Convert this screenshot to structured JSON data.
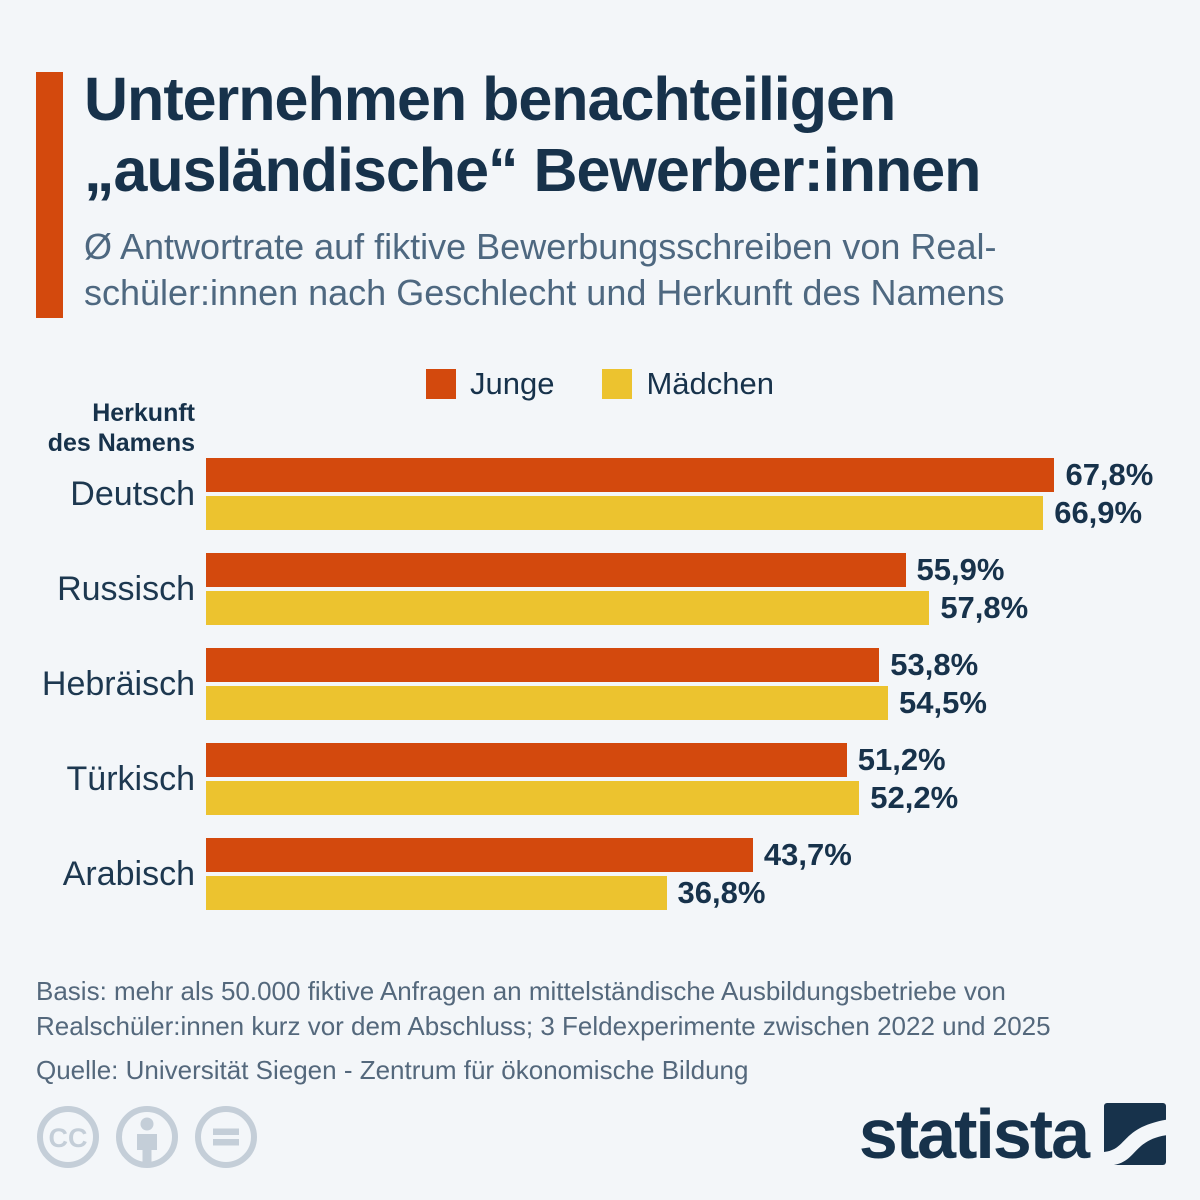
{
  "header": {
    "title_line1": "Unternehmen benachteiligen",
    "title_line2": "„ausländische“ Bewerber:innen",
    "subtitle_line1": "Ø Antwortrate auf fiktive Bewerbungsschreiben von Real-",
    "subtitle_line2": "schüler:innen nach Geschlecht und Herkunft des Namens"
  },
  "chart_data": {
    "type": "bar",
    "orientation": "horizontal",
    "title": "Unternehmen benachteiligen „ausländische“ Bewerber:innen",
    "subtitle": "Ø Antwortrate auf fiktive Bewerbungsschreiben von Realschüler:innen nach Geschlecht und Herkunft des Namens",
    "categories": [
      "Deutsch",
      "Russisch",
      "Hebräisch",
      "Türkisch",
      "Arabisch"
    ],
    "category_axis_label": "Herkunft des Namens",
    "series": [
      {
        "name": "Junge",
        "color": "#d3490d",
        "values": [
          67.8,
          55.9,
          53.8,
          51.2,
          43.7
        ],
        "labels": [
          "67,8%",
          "55,9%",
          "53,8%",
          "51,2%",
          "43,7%"
        ]
      },
      {
        "name": "Mädchen",
        "color": "#ecc32f",
        "values": [
          66.9,
          57.8,
          54.5,
          52.2,
          36.8
        ],
        "labels": [
          "66,9%",
          "57,8%",
          "54,5%",
          "52,2%",
          "36,8%"
        ]
      }
    ],
    "xlim": [
      0,
      70
    ],
    "grid": false,
    "legend_position": "top-center",
    "value_suffix": "%"
  },
  "legend": {
    "items": [
      {
        "label": "Junge",
        "color": "#d3490d"
      },
      {
        "label": "Mädchen",
        "color": "#ecc32f"
      }
    ]
  },
  "axis": {
    "label_line1": "Herkunft",
    "label_line2": "des Namens"
  },
  "footer": {
    "basis_line1": "Basis: mehr als 50.000 fiktive Anfragen an mittelständische Ausbildungsbetriebe von",
    "basis_line2": "Realschüler:innen kurz vor dem Abschluss; 3 Feldexperimente zwischen 2022 und 2025",
    "source": "Quelle: Universität Siegen - Zentrum für ökonomische Bildung"
  },
  "branding": {
    "logo_text": "statista",
    "cc_label": "CC"
  },
  "colors": {
    "background": "#f3f6f9",
    "accent_orange": "#d3490d",
    "series_yellow": "#ecc32f",
    "navy": "#17324b",
    "text_gray_blue": "#4e6880",
    "footer_gray": "#54687c",
    "cc_icon_gray": "#c4ced8"
  }
}
